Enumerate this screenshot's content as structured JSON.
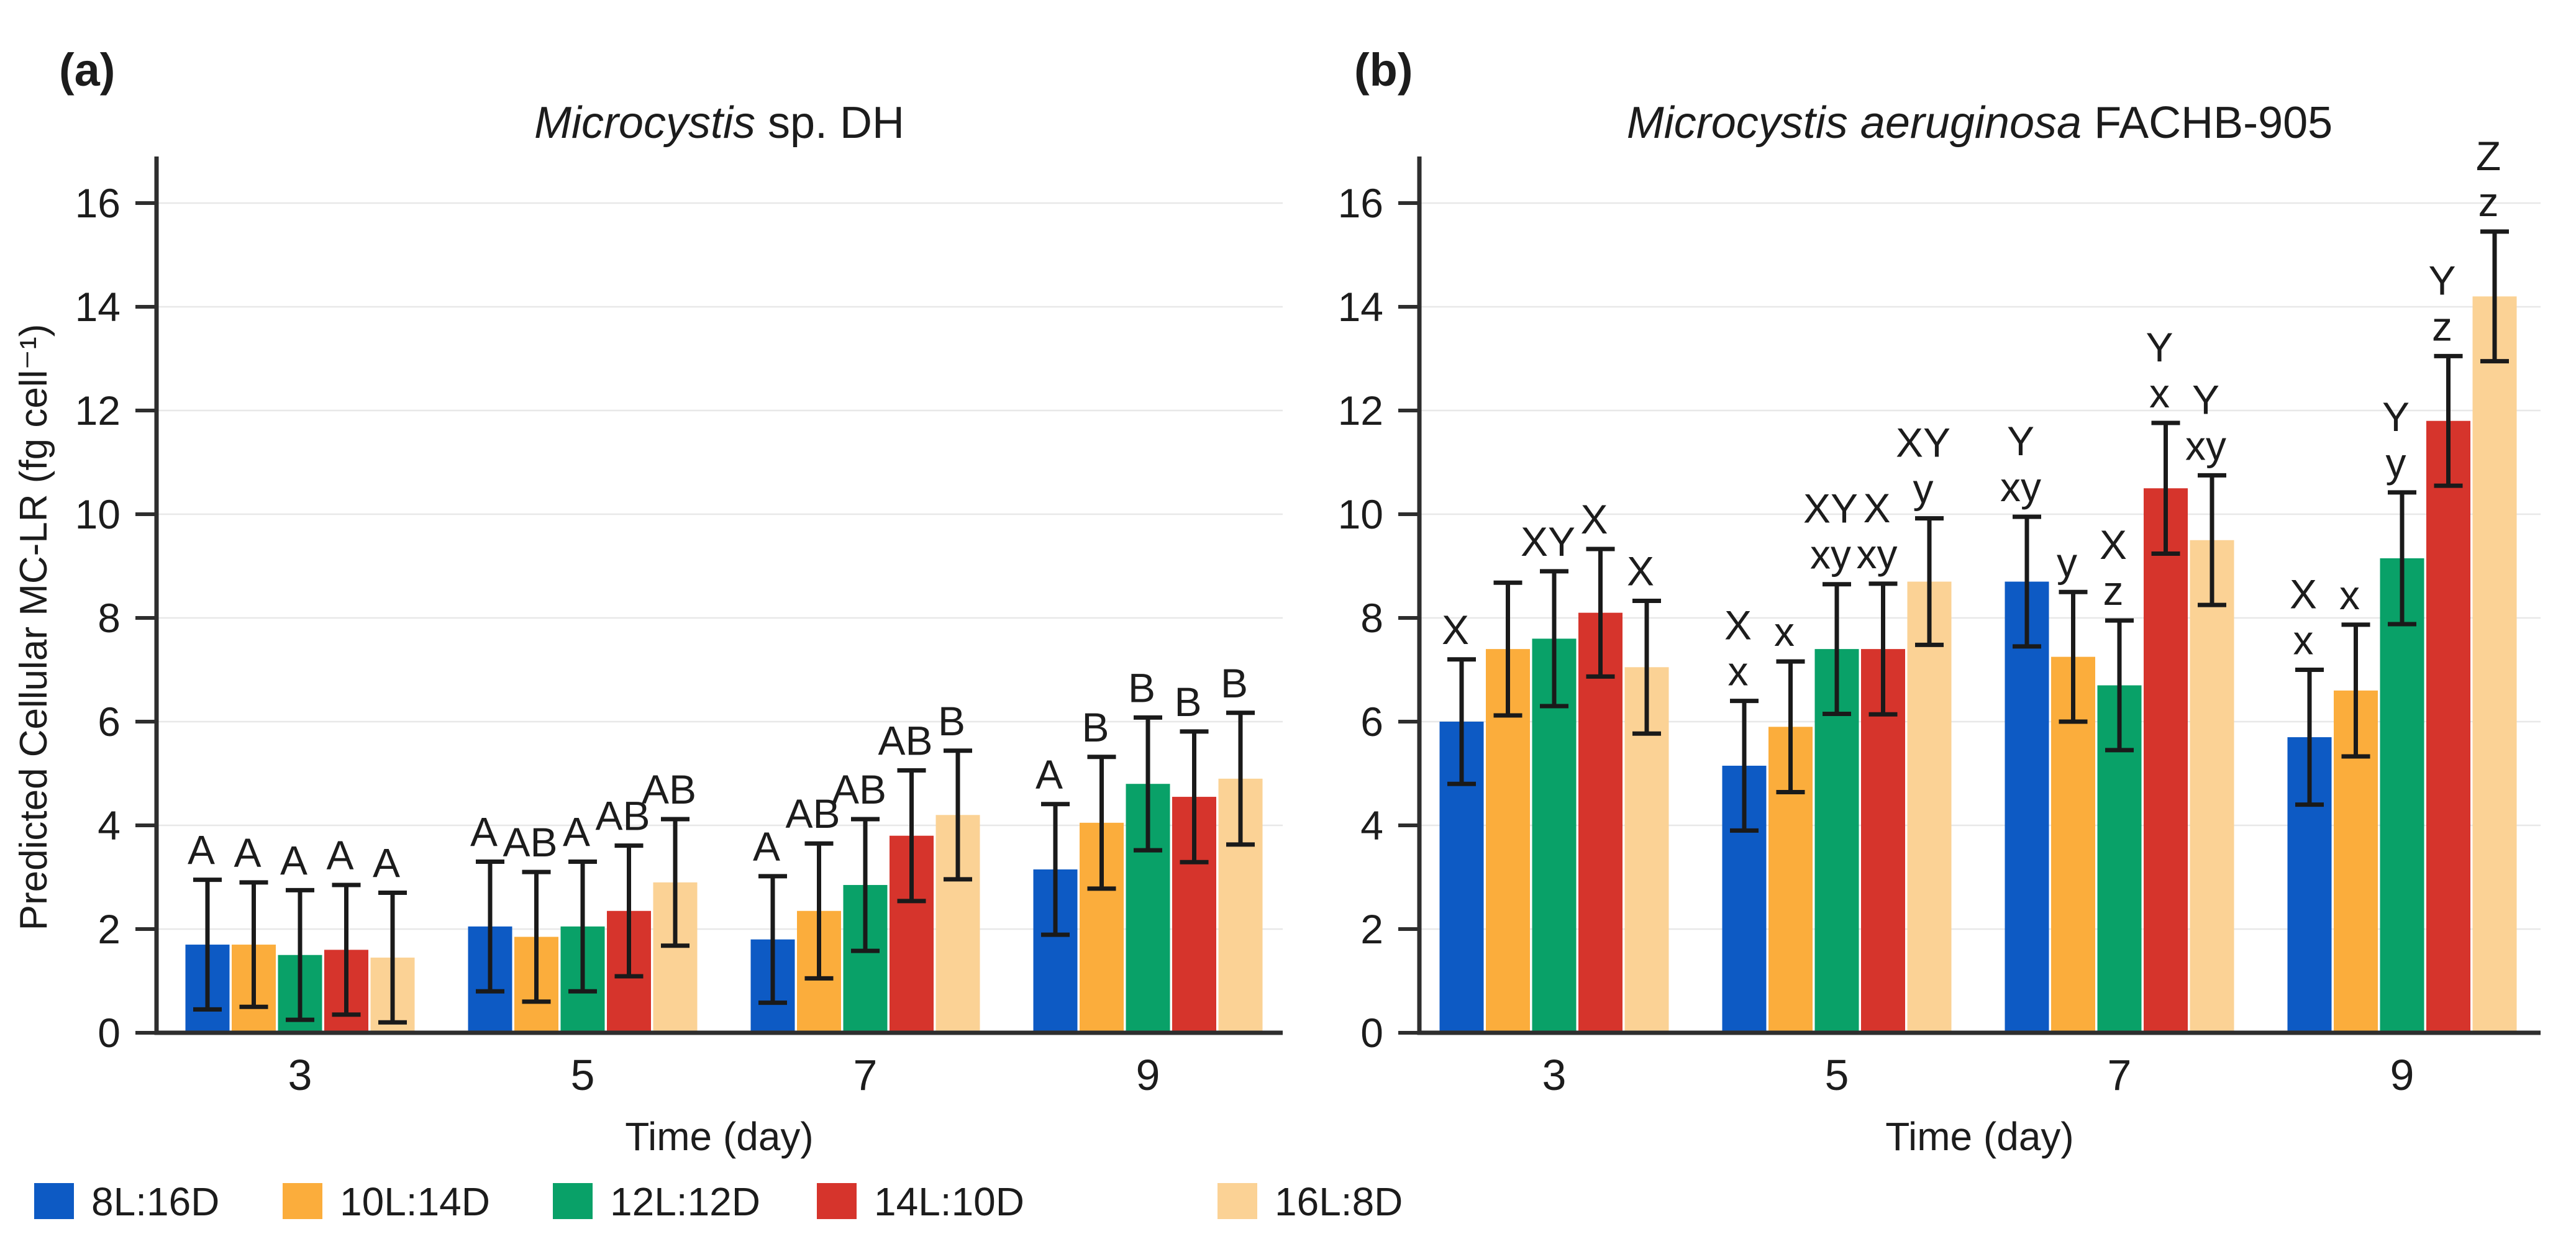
{
  "figure": {
    "panels": [
      {
        "tag": "(a)",
        "title_italic": "Microcystis",
        "title_rest": " sp. DH"
      },
      {
        "tag": "(b)",
        "title_italic": "Microcystis aeruginosa",
        "title_rest": " FACHB-905"
      }
    ],
    "xlabel_a": "Time (day)",
    "xlabel_b": "Time (day)",
    "ylabel": "Predicted Cellular MC-LR (fg cell⁻¹)"
  },
  "legend": {
    "items": [
      {
        "label": "8L:16D",
        "color": "#0d5ac4"
      },
      {
        "label": "10L:14D",
        "color": "#fbad3c"
      },
      {
        "label": "12L:12D",
        "color": "#09a168"
      },
      {
        "label": "14L:10D",
        "color": "#d6342c"
      },
      {
        "label": "16L:8D",
        "color": "#fbd295"
      }
    ]
  },
  "chart_data": [
    {
      "type": "bar",
      "panel": "a",
      "title": "Microcystis sp. DH",
      "xlabel": "Time (day)",
      "ylabel": "Predicted Cellular MC-LR (fg cell⁻¹)",
      "categories": [
        "3",
        "5",
        "7",
        "9"
      ],
      "yticks": [
        0,
        2,
        4,
        6,
        8,
        10,
        12,
        14,
        16
      ],
      "ylim": [
        0,
        17
      ],
      "grid": true,
      "legend_position": "bottom",
      "series": [
        {
          "name": "8L:16D",
          "color": "#0d5ac4",
          "values": [
            1.7,
            2.05,
            1.8,
            3.15
          ],
          "errors": [
            1.25,
            1.25,
            1.22,
            1.26
          ],
          "letters": [
            [
              "A"
            ],
            [
              "A"
            ],
            [
              "A"
            ],
            [
              "A"
            ]
          ]
        },
        {
          "name": "10L:14D",
          "color": "#fbad3c",
          "values": [
            1.7,
            1.85,
            2.35,
            4.05
          ],
          "errors": [
            1.2,
            1.25,
            1.3,
            1.27
          ],
          "letters": [
            [
              "A"
            ],
            [
              "AB"
            ],
            [
              "AB"
            ],
            [
              "B"
            ]
          ]
        },
        {
          "name": "12L:12D",
          "color": "#09a168",
          "values": [
            1.5,
            2.05,
            2.85,
            4.8
          ],
          "errors": [
            1.25,
            1.25,
            1.27,
            1.28
          ],
          "letters": [
            [
              "A"
            ],
            [
              "A"
            ],
            [
              "AB"
            ],
            [
              "B"
            ]
          ]
        },
        {
          "name": "14L:10D",
          "color": "#d6342c",
          "values": [
            1.6,
            2.35,
            3.8,
            4.55
          ],
          "errors": [
            1.25,
            1.26,
            1.26,
            1.26
          ],
          "letters": [
            [
              "A"
            ],
            [
              "AB"
            ],
            [
              "AB"
            ],
            [
              "B"
            ]
          ]
        },
        {
          "name": "16L:8D",
          "color": "#fbd295",
          "values": [
            1.45,
            2.9,
            4.2,
            4.9
          ],
          "errors": [
            1.25,
            1.22,
            1.24,
            1.27
          ],
          "letters": [
            [
              "A"
            ],
            [
              "AB"
            ],
            [
              "B"
            ],
            [
              "B"
            ]
          ]
        }
      ]
    },
    {
      "type": "bar",
      "panel": "b",
      "title": "Microcystis aeruginosa FACHB-905",
      "xlabel": "Time (day)",
      "ylabel": "",
      "categories": [
        "3",
        "5",
        "7",
        "9"
      ],
      "yticks": [
        0,
        2,
        4,
        6,
        8,
        10,
        12,
        14,
        16
      ],
      "ylim": [
        0,
        17
      ],
      "grid": true,
      "legend_position": "bottom",
      "series": [
        {
          "name": "8L:16D",
          "color": "#0d5ac4",
          "values": [
            6.0,
            5.15,
            8.7,
            5.7
          ],
          "errors": [
            1.2,
            1.25,
            1.25,
            1.3
          ],
          "letters": [
            [
              "X"
            ],
            [
              "X",
              "x"
            ],
            [
              "Y",
              "xy"
            ],
            [
              "X",
              "x"
            ]
          ]
        },
        {
          "name": "10L:14D",
          "color": "#fbad3c",
          "values": [
            7.4,
            5.9,
            7.25,
            6.6
          ],
          "errors": [
            1.28,
            1.26,
            1.25,
            1.27
          ],
          "letters": [
            [],
            [
              "x"
            ],
            [
              "y"
            ],
            [
              "x"
            ]
          ]
        },
        {
          "name": "12L:12D",
          "color": "#09a168",
          "values": [
            7.6,
            7.4,
            6.7,
            9.15
          ],
          "errors": [
            1.3,
            1.25,
            1.25,
            1.27
          ],
          "letters": [
            [
              "XY"
            ],
            [
              "XY",
              "xy"
            ],
            [
              "X",
              "z"
            ],
            [
              "Y",
              "y"
            ]
          ]
        },
        {
          "name": "14L:10D",
          "color": "#d6342c",
          "values": [
            8.1,
            7.4,
            10.5,
            11.8
          ],
          "errors": [
            1.23,
            1.26,
            1.26,
            1.25
          ],
          "letters": [
            [
              "X"
            ],
            [
              "X",
              "xy"
            ],
            [
              "Y",
              "x"
            ],
            [
              "Y",
              "z"
            ]
          ]
        },
        {
          "name": "16L:8D",
          "color": "#fbd295",
          "values": [
            7.05,
            8.7,
            9.5,
            14.2
          ],
          "errors": [
            1.28,
            1.22,
            1.25,
            1.25
          ],
          "letters": [
            [
              "X"
            ],
            [
              "XY",
              "y"
            ],
            [
              "Y",
              "xy"
            ],
            [
              "Z",
              "z"
            ]
          ]
        }
      ]
    }
  ]
}
